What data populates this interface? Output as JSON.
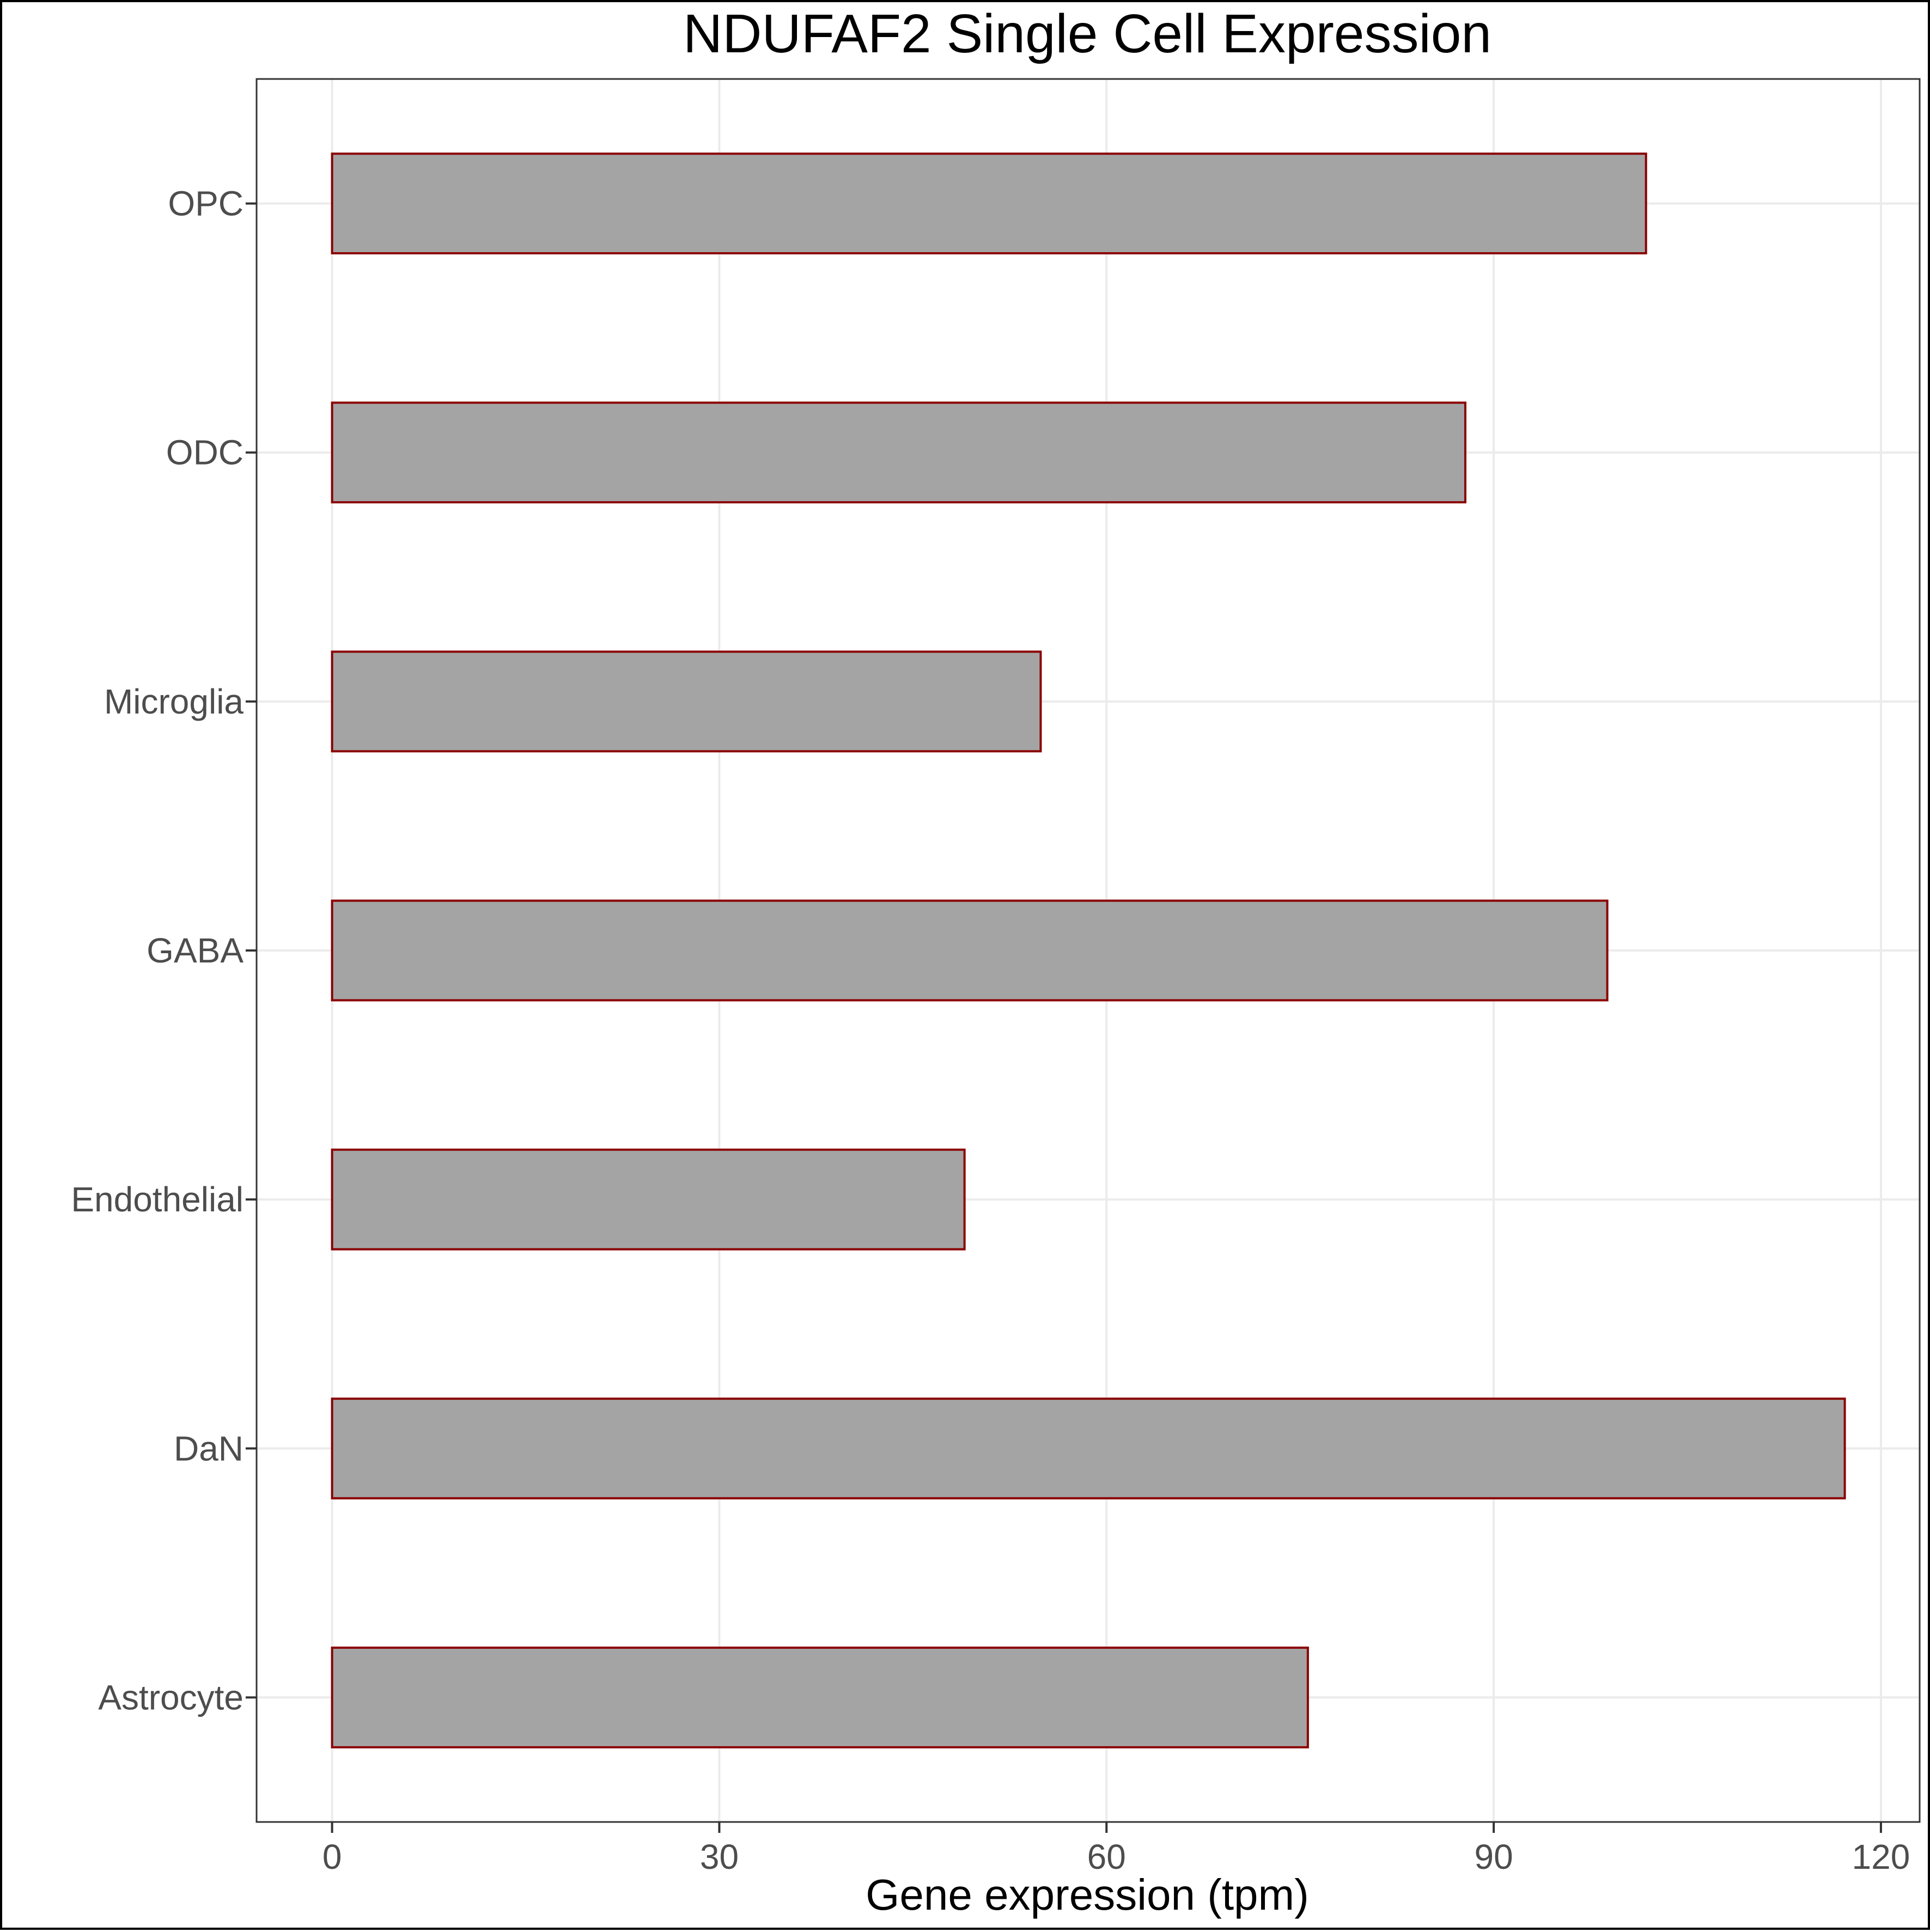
{
  "chart_data": {
    "type": "bar",
    "orientation": "horizontal",
    "title": "NDUFAF2 Single Cell Expression",
    "xlabel": "Gene expression (tpm)",
    "ylabel": "",
    "categories": [
      "Astrocyte",
      "DaN",
      "Endothelial",
      "GABA",
      "Microglia",
      "ODC",
      "OPC"
    ],
    "values": [
      75.6,
      117.2,
      49.0,
      98.8,
      54.9,
      87.8,
      101.8
    ],
    "xlim": [
      -5.85,
      123
    ],
    "xticks": [
      0,
      30,
      60,
      90,
      120
    ],
    "xtick_labels": [
      "0",
      "30",
      "60",
      "90",
      "120"
    ],
    "grid": true,
    "legend": "none",
    "colors": {
      "bar_fill": "#a4a4a4",
      "bar_outline": "#8b0000",
      "grid": "#ebebeb",
      "tick_text": "#4d4d4d",
      "text": "#000000"
    }
  }
}
